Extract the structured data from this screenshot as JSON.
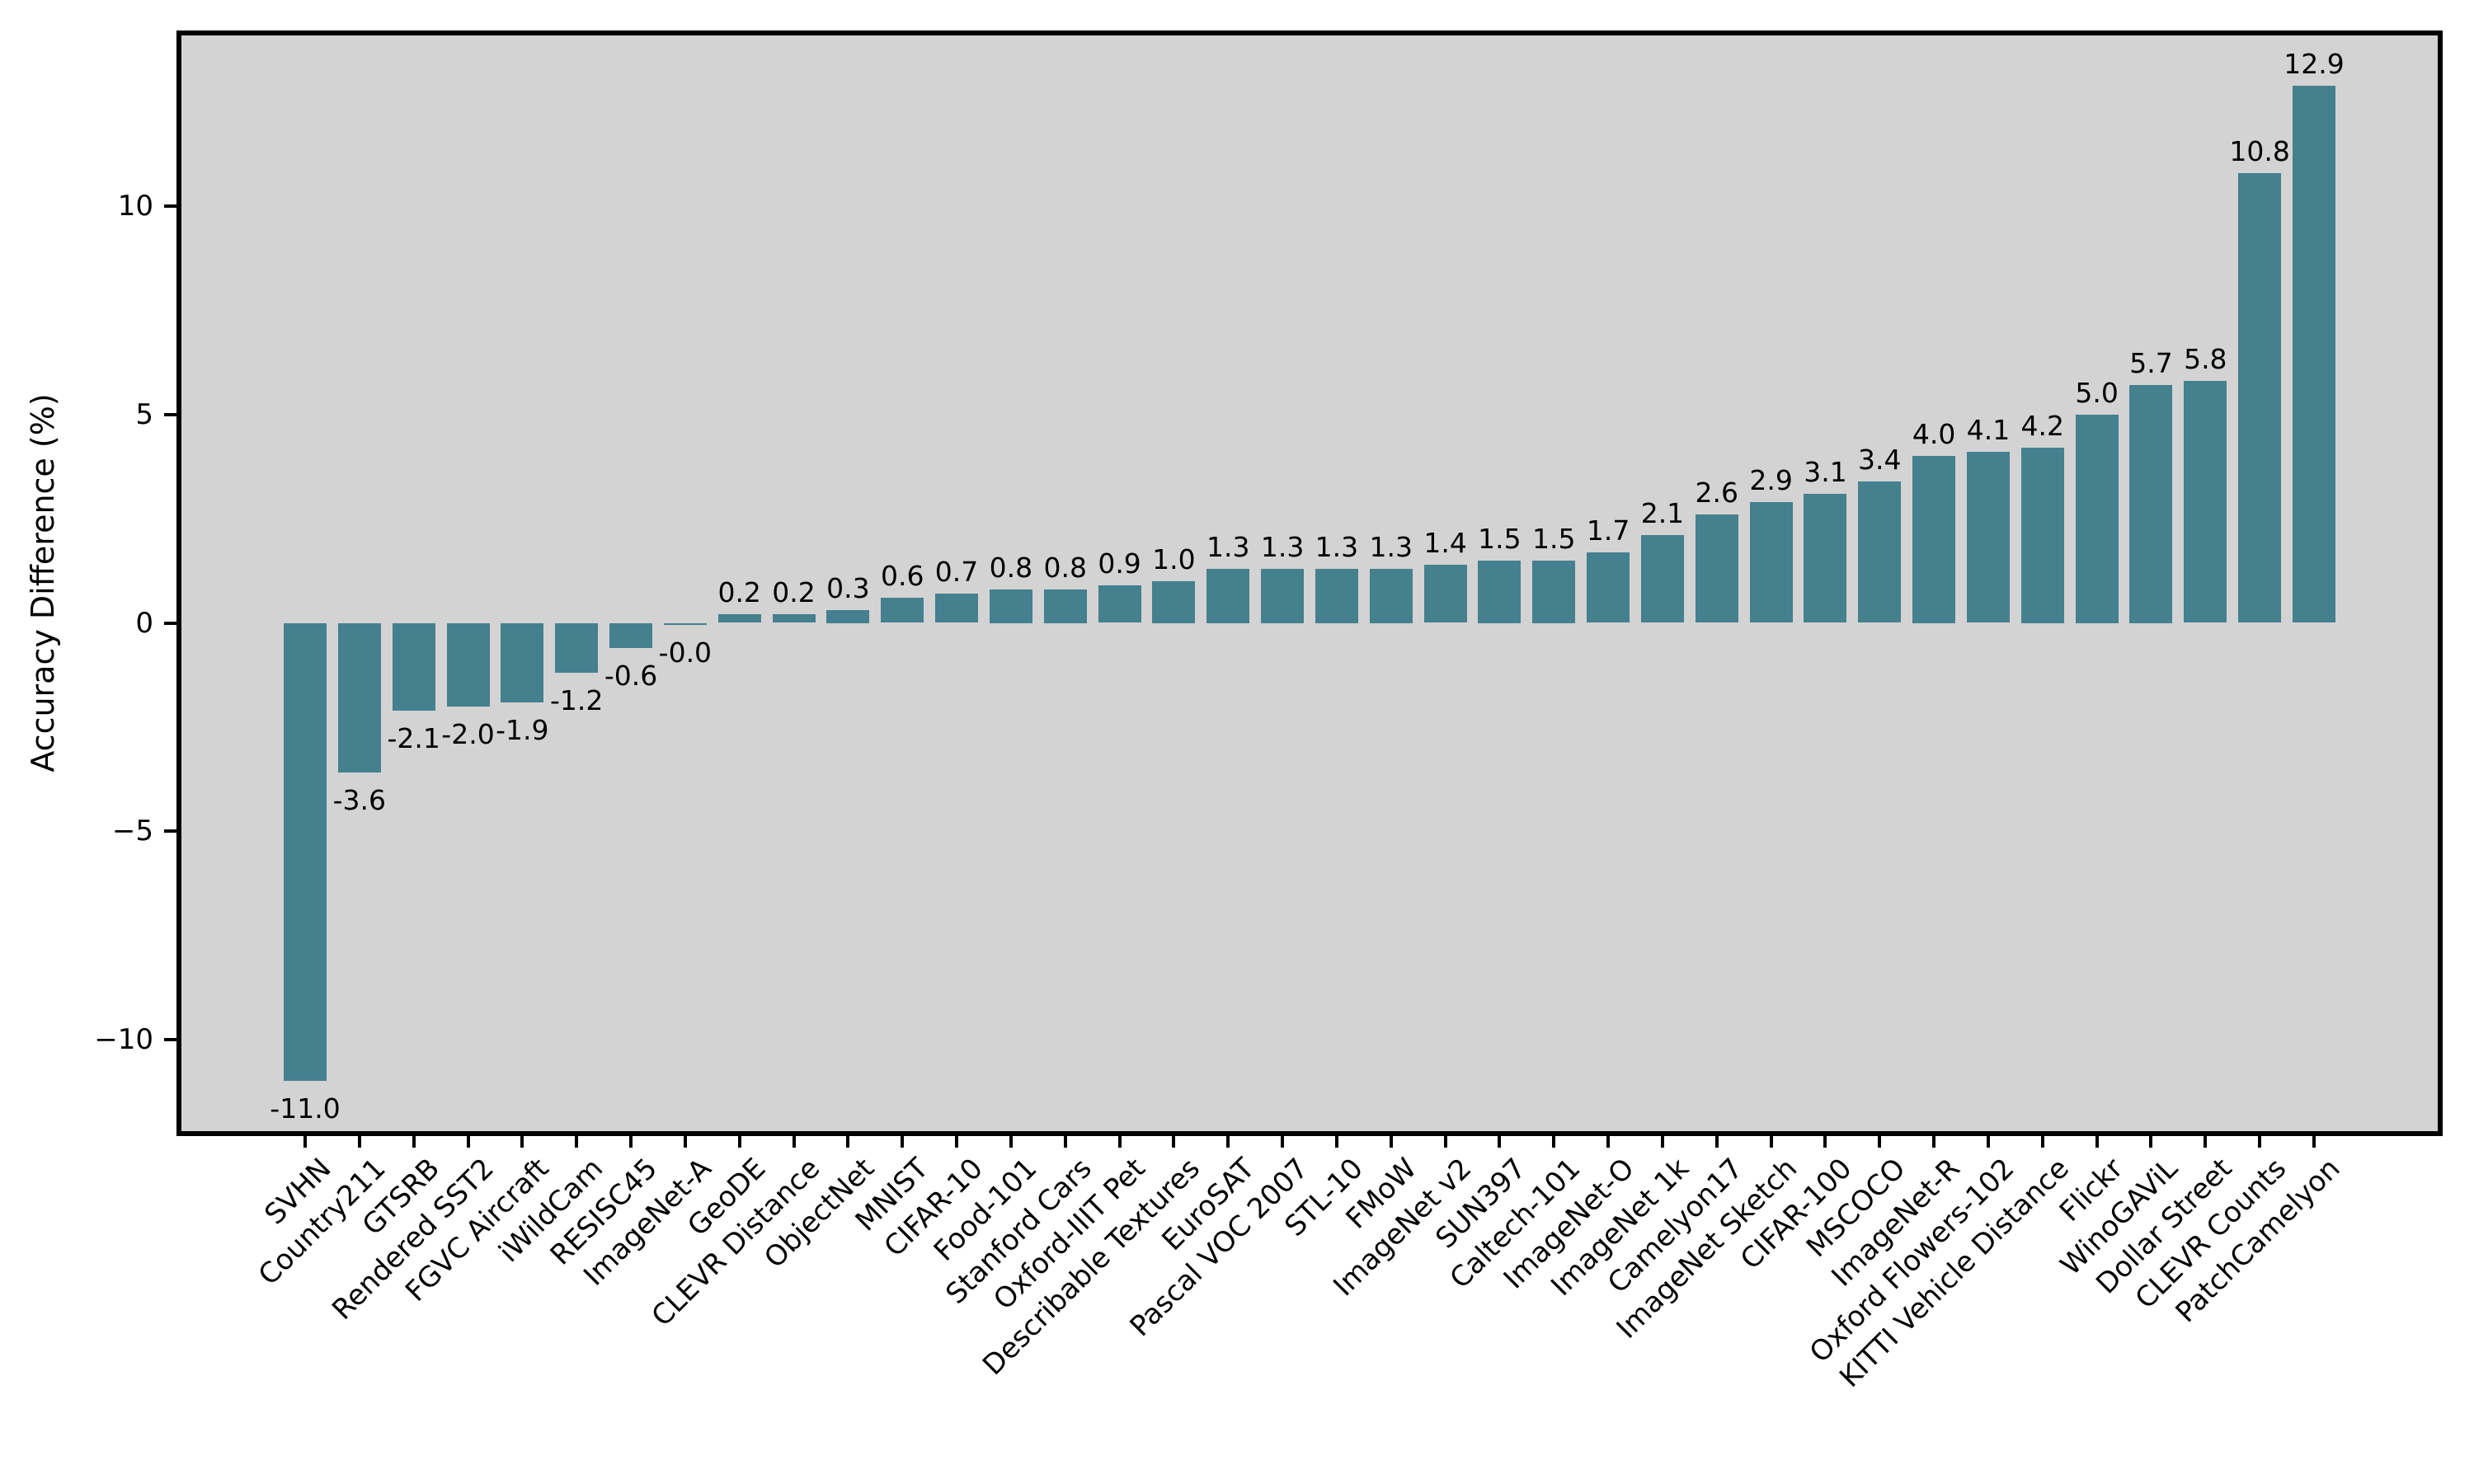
{
  "figure": {
    "background": "#ffffff",
    "plot_background": "#d3d3d3",
    "axis_color": "#000000"
  },
  "chart_data": {
    "type": "bar",
    "title": "",
    "xlabel": "",
    "ylabel": "Accuracy Difference (%)",
    "bar_color": "#44808e",
    "grid": false,
    "legend": null,
    "ylim": [
      -12.2,
      14.1
    ],
    "yticks": [
      -10,
      -5,
      0,
      5,
      10
    ],
    "ytick_labels": [
      "−10",
      "−5",
      "0",
      "5",
      "10"
    ],
    "categories": [
      "SVHN",
      "Country211",
      "GTSRB",
      "Rendered SST2",
      "FGVC Aircraft",
      "iWildCam",
      "RESISC45",
      "ImageNet-A",
      "GeoDE",
      "CLEVR Distance",
      "ObjectNet",
      "MNIST",
      "CIFAR-10",
      "Food-101",
      "Stanford Cars",
      "Oxford-IIIT Pet",
      "Describable Textures",
      "EuroSAT",
      "Pascal VOC 2007",
      "STL-10",
      "FMoW",
      "ImageNet v2",
      "SUN397",
      "Caltech-101",
      "ImageNet-O",
      "ImageNet 1k",
      "Camelyon17",
      "ImageNet Sketch",
      "CIFAR-100",
      "MSCOCO",
      "ImageNet-R",
      "Oxford Flowers-102",
      "KITTI Vehicle Distance",
      "Flickr",
      "WinoGAViL",
      "Dollar Street",
      "CLEVR Counts",
      "PatchCamelyon"
    ],
    "values": [
      -11.0,
      -3.6,
      -2.1,
      -2.0,
      -1.9,
      -1.2,
      -0.6,
      -0.04,
      0.2,
      0.2,
      0.3,
      0.6,
      0.7,
      0.8,
      0.8,
      0.9,
      1.0,
      1.3,
      1.3,
      1.3,
      1.3,
      1.4,
      1.5,
      1.5,
      1.7,
      2.1,
      2.6,
      2.9,
      3.1,
      3.4,
      4.0,
      4.1,
      4.2,
      5.0,
      5.7,
      5.8,
      10.8,
      12.9
    ],
    "value_labels": [
      "-11.0",
      "-3.6",
      "-2.1",
      "-2.0",
      "-1.9",
      "-1.2",
      "-0.6",
      "-0.0",
      "0.2",
      "0.2",
      "0.3",
      "0.6",
      "0.7",
      "0.8",
      "0.8",
      "0.9",
      "1.0",
      "1.3",
      "1.3",
      "1.3",
      "1.3",
      "1.4",
      "1.5",
      "1.5",
      "1.7",
      "2.1",
      "2.6",
      "2.9",
      "3.1",
      "3.4",
      "4.0",
      "4.1",
      "4.2",
      "5.0",
      "5.7",
      "5.8",
      "10.8",
      "12.9"
    ]
  }
}
